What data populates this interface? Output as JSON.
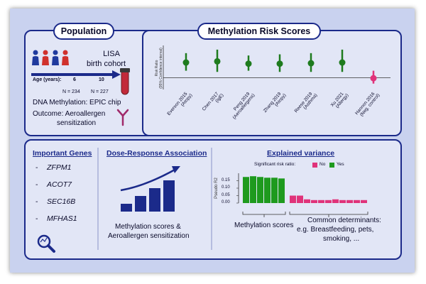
{
  "population": {
    "title": "Population",
    "cohort_line1": "LISA",
    "cohort_line2": "birth cohort",
    "age_label": "Age (years):",
    "age_1": "6",
    "age_2": "10",
    "n_1": "N = 234",
    "n_2": "N = 227",
    "dna_line": "DNA Methylation: EPIC chip",
    "outcome_line1": "Outcome: Aeroallergen",
    "outcome_line2": "sensitization",
    "colors": {
      "person_blue": "#1f3a9e",
      "person_red": "#d0312d",
      "tube": "#c22a3a",
      "antibody": "#a02a6a"
    }
  },
  "mrs": {
    "title": "Methylation Risk Scores",
    "chart_data": {
      "type": "scatter",
      "ylabel_line1": "Risk Ratio",
      "ylabel_line2": "(95% Confidence interval)",
      "reference_line": 1,
      "ylim": [
        0.5,
        2.5
      ],
      "points": [
        {
          "line1": "Everson 2015",
          "line2": "(Atopy)",
          "est": 1.65,
          "lo": 1.3,
          "hi": 2.05,
          "color": "#1e7b1e"
        },
        {
          "line1": "Chen 2017",
          "line2": "(IgE)",
          "est": 1.7,
          "lo": 1.25,
          "hi": 2.2,
          "color": "#1e7b1e"
        },
        {
          "line1": "Peng 2019",
          "line2": "(Aeroallergens)",
          "est": 1.6,
          "lo": 1.3,
          "hi": 1.95,
          "color": "#1e7b1e"
        },
        {
          "line1": "Zhang 2019",
          "line2": "(Atopy)",
          "est": 1.6,
          "lo": 1.25,
          "hi": 2.0,
          "color": "#1e7b1e"
        },
        {
          "line1": "Reese 2019",
          "line2": "(Asthma)",
          "est": 1.62,
          "lo": 1.25,
          "hi": 2.05,
          "color": "#1e7b1e"
        },
        {
          "line1": "Xu 2021",
          "line2": "(Allergy)",
          "est": 1.65,
          "lo": 1.25,
          "hi": 2.2,
          "color": "#1e7b1e"
        },
        {
          "line1": "Hannon 2016",
          "line2": "(Neg. control)",
          "est": 0.98,
          "lo": 0.75,
          "hi": 1.3,
          "color": "#e0337a"
        }
      ]
    }
  },
  "genes": {
    "title": "Important Genes",
    "items": [
      "ZFPM1",
      "ACOT7",
      "SEC16B",
      "MFHAS1"
    ],
    "dash": "-"
  },
  "dose": {
    "title": "Dose-Response Association",
    "caption_line1": "Methylation scores &",
    "caption_line2": "Aeroallergen sensitization",
    "bars": [
      1,
      2,
      3,
      4
    ]
  },
  "variance": {
    "title": "Explained variance",
    "legend_label": "Significant risk ratio:",
    "legend_no": "No",
    "legend_yes": "Yes",
    "chart_data": {
      "type": "bar",
      "ylabel": "Pseudo R2",
      "yticks": [
        "0.00",
        "0.05",
        "0.10",
        "0.15"
      ],
      "ylim": [
        0,
        0.2
      ],
      "yes_values": [
        0.175,
        0.18,
        0.175,
        0.17,
        0.17,
        0.165
      ],
      "no_values": [
        0.05,
        0.05,
        0.025,
        0.02,
        0.02,
        0.02,
        0.025,
        0.02,
        0.02,
        0.02,
        0.02
      ],
      "yes_color": "#1e9a1e",
      "no_color": "#e0337a"
    },
    "caption_left": "Methylation scores",
    "caption_right_line1": "Common determinants:",
    "caption_right_line2": "e.g. Breastfeeding, pets,",
    "caption_right_line3": "smoking, ..."
  }
}
